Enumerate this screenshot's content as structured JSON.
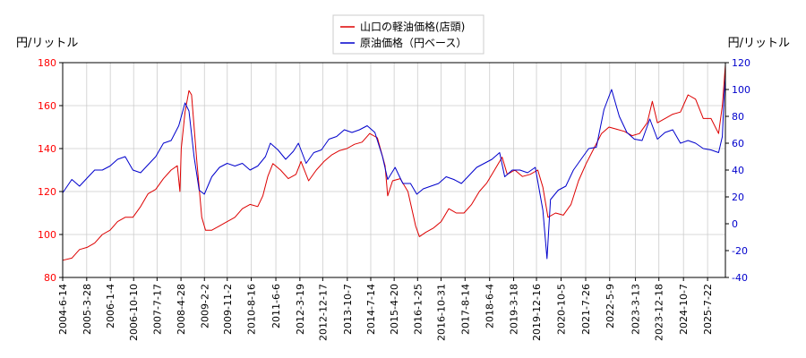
{
  "chart_data": {
    "type": "line",
    "title": "",
    "left_axis": {
      "label": "円/リットル",
      "ylim": [
        80,
        180
      ],
      "ticks": [
        80,
        100,
        120,
        140,
        160,
        180
      ],
      "tick_color": "#ff0000"
    },
    "right_axis": {
      "label": "円/リットル",
      "ylim": [
        -40,
        120
      ],
      "ticks": [
        -40,
        -20,
        0,
        20,
        40,
        60,
        80,
        100,
        120
      ],
      "tick_color": "#0000cc"
    },
    "x_axis": {
      "range": [
        "2004-06-14",
        "2026-02-20"
      ],
      "tick_labels": [
        "2004-6-14",
        "2005-3-28",
        "2006-1-4",
        "2006-10-10",
        "2007-7-17",
        "2008-4-28",
        "2009-2-2",
        "2009-11-2",
        "2010-8-16",
        "2011-6-6",
        "2012-3-19",
        "2012-12-17",
        "2013-10-7",
        "2014-7-14",
        "2015-4-20",
        "2016-1-25",
        "2016-10-31",
        "2017-8-14",
        "2018-6-4",
        "2019-3-18",
        "2019-12-16",
        "2020-10-5",
        "2021-7-26",
        "2022-5-9",
        "2023-3-13",
        "2023-12-18",
        "2024-10-7",
        "2025-7-22"
      ]
    },
    "grid": true,
    "legend": {
      "placement": "top-center"
    },
    "series": [
      {
        "name": "山口の軽油価格(店頭)",
        "axis": "left",
        "color": "#dd0000",
        "points": [
          [
            "2004-06-14",
            88
          ],
          [
            "2004-10-01",
            89
          ],
          [
            "2005-01-01",
            93
          ],
          [
            "2005-04-01",
            94
          ],
          [
            "2005-07-01",
            96
          ],
          [
            "2005-10-01",
            100
          ],
          [
            "2006-01-01",
            102
          ],
          [
            "2006-04-01",
            106
          ],
          [
            "2006-07-01",
            108
          ],
          [
            "2006-10-01",
            108
          ],
          [
            "2007-01-01",
            113
          ],
          [
            "2007-04-01",
            119
          ],
          [
            "2007-07-01",
            121
          ],
          [
            "2007-10-01",
            126
          ],
          [
            "2008-01-01",
            130
          ],
          [
            "2008-03-15",
            132
          ],
          [
            "2008-04-15",
            120
          ],
          [
            "2008-05-01",
            140
          ],
          [
            "2008-06-15",
            157
          ],
          [
            "2008-08-01",
            167
          ],
          [
            "2008-09-01",
            165
          ],
          [
            "2008-11-01",
            135
          ],
          [
            "2009-01-01",
            108
          ],
          [
            "2009-02-15",
            102
          ],
          [
            "2009-05-01",
            102
          ],
          [
            "2009-08-01",
            104
          ],
          [
            "2009-11-01",
            106
          ],
          [
            "2010-02-01",
            108
          ],
          [
            "2010-05-01",
            112
          ],
          [
            "2010-08-01",
            114
          ],
          [
            "2010-11-01",
            113
          ],
          [
            "2011-01-01",
            118
          ],
          [
            "2011-03-01",
            127
          ],
          [
            "2011-05-01",
            133
          ],
          [
            "2011-08-01",
            130
          ],
          [
            "2011-11-01",
            126
          ],
          [
            "2012-02-01",
            128
          ],
          [
            "2012-04-01",
            134
          ],
          [
            "2012-07-01",
            125
          ],
          [
            "2012-10-01",
            130
          ],
          [
            "2013-01-01",
            134
          ],
          [
            "2013-04-01",
            137
          ],
          [
            "2013-07-01",
            139
          ],
          [
            "2013-10-01",
            140
          ],
          [
            "2014-01-01",
            142
          ],
          [
            "2014-04-01",
            143
          ],
          [
            "2014-07-01",
            147
          ],
          [
            "2014-10-01",
            145
          ],
          [
            "2015-01-01",
            132
          ],
          [
            "2015-02-01",
            118
          ],
          [
            "2015-04-01",
            125
          ],
          [
            "2015-07-01",
            126
          ],
          [
            "2015-10-01",
            120
          ],
          [
            "2016-01-01",
            104
          ],
          [
            "2016-02-15",
            99
          ],
          [
            "2016-05-01",
            101
          ],
          [
            "2016-08-01",
            103
          ],
          [
            "2016-11-01",
            106
          ],
          [
            "2017-02-01",
            112
          ],
          [
            "2017-05-01",
            110
          ],
          [
            "2017-08-01",
            110
          ],
          [
            "2017-11-01",
            114
          ],
          [
            "2018-02-01",
            120
          ],
          [
            "2018-05-01",
            124
          ],
          [
            "2018-08-01",
            130
          ],
          [
            "2018-11-01",
            136
          ],
          [
            "2019-01-01",
            128
          ],
          [
            "2019-04-01",
            130
          ],
          [
            "2019-07-01",
            127
          ],
          [
            "2019-10-01",
            128
          ],
          [
            "2020-01-01",
            130
          ],
          [
            "2020-03-01",
            122
          ],
          [
            "2020-05-01",
            108
          ],
          [
            "2020-08-01",
            110
          ],
          [
            "2020-11-01",
            109
          ],
          [
            "2021-02-01",
            114
          ],
          [
            "2021-05-01",
            125
          ],
          [
            "2021-08-01",
            133
          ],
          [
            "2021-11-01",
            140
          ],
          [
            "2022-02-01",
            147
          ],
          [
            "2022-05-01",
            150
          ],
          [
            "2022-08-01",
            149
          ],
          [
            "2022-11-01",
            148
          ],
          [
            "2023-02-01",
            146
          ],
          [
            "2023-05-01",
            147
          ],
          [
            "2023-08-01",
            152
          ],
          [
            "2023-10-01",
            162
          ],
          [
            "2023-12-01",
            152
          ],
          [
            "2024-03-01",
            154
          ],
          [
            "2024-06-01",
            156
          ],
          [
            "2024-09-01",
            157
          ],
          [
            "2024-12-01",
            165
          ],
          [
            "2025-03-01",
            163
          ],
          [
            "2025-06-01",
            154
          ],
          [
            "2025-09-01",
            154
          ],
          [
            "2025-12-01",
            147
          ],
          [
            "2026-01-15",
            160
          ],
          [
            "2026-02-20",
            179
          ]
        ]
      },
      {
        "name": "原油価格（円ベース）",
        "axis": "right",
        "color": "#0000cc",
        "points": [
          [
            "2004-06-14",
            23
          ],
          [
            "2004-10-01",
            33
          ],
          [
            "2005-01-01",
            28
          ],
          [
            "2005-04-01",
            34
          ],
          [
            "2005-07-01",
            40
          ],
          [
            "2005-10-01",
            40
          ],
          [
            "2006-01-01",
            43
          ],
          [
            "2006-04-01",
            48
          ],
          [
            "2006-07-01",
            50
          ],
          [
            "2006-10-01",
            40
          ],
          [
            "2007-01-01",
            38
          ],
          [
            "2007-04-01",
            44
          ],
          [
            "2007-07-01",
            50
          ],
          [
            "2007-10-01",
            60
          ],
          [
            "2008-01-01",
            62
          ],
          [
            "2008-04-01",
            73
          ],
          [
            "2008-06-15",
            90
          ],
          [
            "2008-08-01",
            84
          ],
          [
            "2008-10-01",
            50
          ],
          [
            "2008-12-01",
            25
          ],
          [
            "2009-02-01",
            22
          ],
          [
            "2009-05-01",
            35
          ],
          [
            "2009-08-01",
            42
          ],
          [
            "2009-11-01",
            45
          ],
          [
            "2010-02-01",
            43
          ],
          [
            "2010-05-01",
            45
          ],
          [
            "2010-08-01",
            40
          ],
          [
            "2010-11-01",
            43
          ],
          [
            "2011-02-01",
            50
          ],
          [
            "2011-04-01",
            60
          ],
          [
            "2011-07-01",
            55
          ],
          [
            "2011-10-01",
            48
          ],
          [
            "2012-01-01",
            54
          ],
          [
            "2012-03-01",
            60
          ],
          [
            "2012-06-01",
            45
          ],
          [
            "2012-09-01",
            53
          ],
          [
            "2012-12-01",
            55
          ],
          [
            "2013-03-01",
            63
          ],
          [
            "2013-06-01",
            65
          ],
          [
            "2013-09-01",
            70
          ],
          [
            "2013-12-01",
            68
          ],
          [
            "2014-03-01",
            70
          ],
          [
            "2014-06-01",
            73
          ],
          [
            "2014-09-01",
            68
          ],
          [
            "2014-12-01",
            50
          ],
          [
            "2015-02-01",
            33
          ],
          [
            "2015-05-01",
            42
          ],
          [
            "2015-08-01",
            30
          ],
          [
            "2015-11-01",
            30
          ],
          [
            "2016-01-15",
            22
          ],
          [
            "2016-04-01",
            26
          ],
          [
            "2016-07-01",
            28
          ],
          [
            "2016-10-01",
            30
          ],
          [
            "2017-01-01",
            35
          ],
          [
            "2017-04-01",
            33
          ],
          [
            "2017-07-01",
            30
          ],
          [
            "2017-10-01",
            36
          ],
          [
            "2018-01-01",
            42
          ],
          [
            "2018-04-01",
            45
          ],
          [
            "2018-07-01",
            48
          ],
          [
            "2018-10-01",
            53
          ],
          [
            "2018-12-01",
            35
          ],
          [
            "2019-03-01",
            40
          ],
          [
            "2019-06-01",
            40
          ],
          [
            "2019-09-01",
            38
          ],
          [
            "2019-12-01",
            42
          ],
          [
            "2020-03-01",
            10
          ],
          [
            "2020-04-20",
            -26
          ],
          [
            "2020-06-01",
            18
          ],
          [
            "2020-09-01",
            25
          ],
          [
            "2020-12-01",
            28
          ],
          [
            "2021-03-01",
            40
          ],
          [
            "2021-06-01",
            48
          ],
          [
            "2021-09-01",
            56
          ],
          [
            "2021-12-01",
            57
          ],
          [
            "2022-03-01",
            85
          ],
          [
            "2022-06-01",
            100
          ],
          [
            "2022-09-01",
            80
          ],
          [
            "2022-12-01",
            68
          ],
          [
            "2023-03-01",
            63
          ],
          [
            "2023-06-01",
            62
          ],
          [
            "2023-09-01",
            78
          ],
          [
            "2023-12-01",
            63
          ],
          [
            "2024-03-01",
            68
          ],
          [
            "2024-06-01",
            70
          ],
          [
            "2024-09-01",
            60
          ],
          [
            "2024-12-01",
            62
          ],
          [
            "2025-03-01",
            60
          ],
          [
            "2025-06-01",
            56
          ],
          [
            "2025-09-01",
            55
          ],
          [
            "2025-12-01",
            53
          ],
          [
            "2026-01-15",
            65
          ],
          [
            "2026-02-01",
            90
          ],
          [
            "2026-02-20",
            110
          ]
        ]
      }
    ]
  }
}
